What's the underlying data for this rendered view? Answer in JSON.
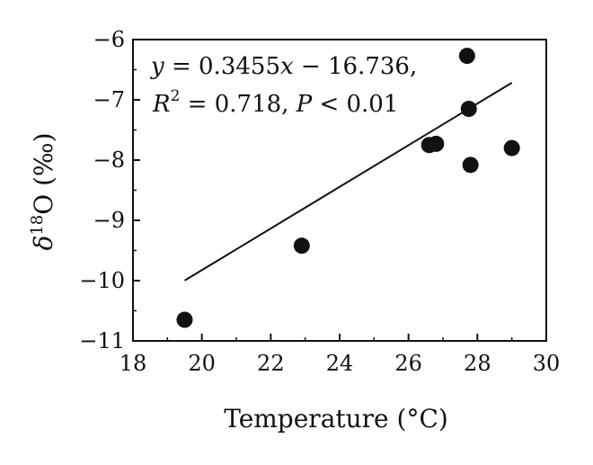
{
  "chart_data": {
    "type": "scatter",
    "x": [
      19.5,
      22.9,
      26.6,
      26.8,
      27.7,
      27.75,
      27.8,
      29.0
    ],
    "y": [
      -10.65,
      -9.42,
      -7.75,
      -7.73,
      -6.27,
      -7.15,
      -8.08,
      -7.8
    ],
    "xlabel": "Temperature (°C)",
    "ylabel": "δ18O (‰)",
    "xlim": [
      18,
      30
    ],
    "ylim": [
      -11,
      -6
    ],
    "xticks": [
      "18",
      "20",
      "22",
      "24",
      "26",
      "28",
      "30"
    ],
    "yticks": [
      "−6",
      "−7",
      "−8",
      "−9",
      "−10",
      "−11"
    ],
    "fit": {
      "slope": 0.3455,
      "intercept": -16.736,
      "x_range": [
        19.5,
        29.0
      ]
    },
    "annotation": {
      "line1": "y = 0.3455x − 16.736,",
      "line2": "R2 = 0.718, P < 0.01"
    },
    "grid": false,
    "legend": "none"
  }
}
